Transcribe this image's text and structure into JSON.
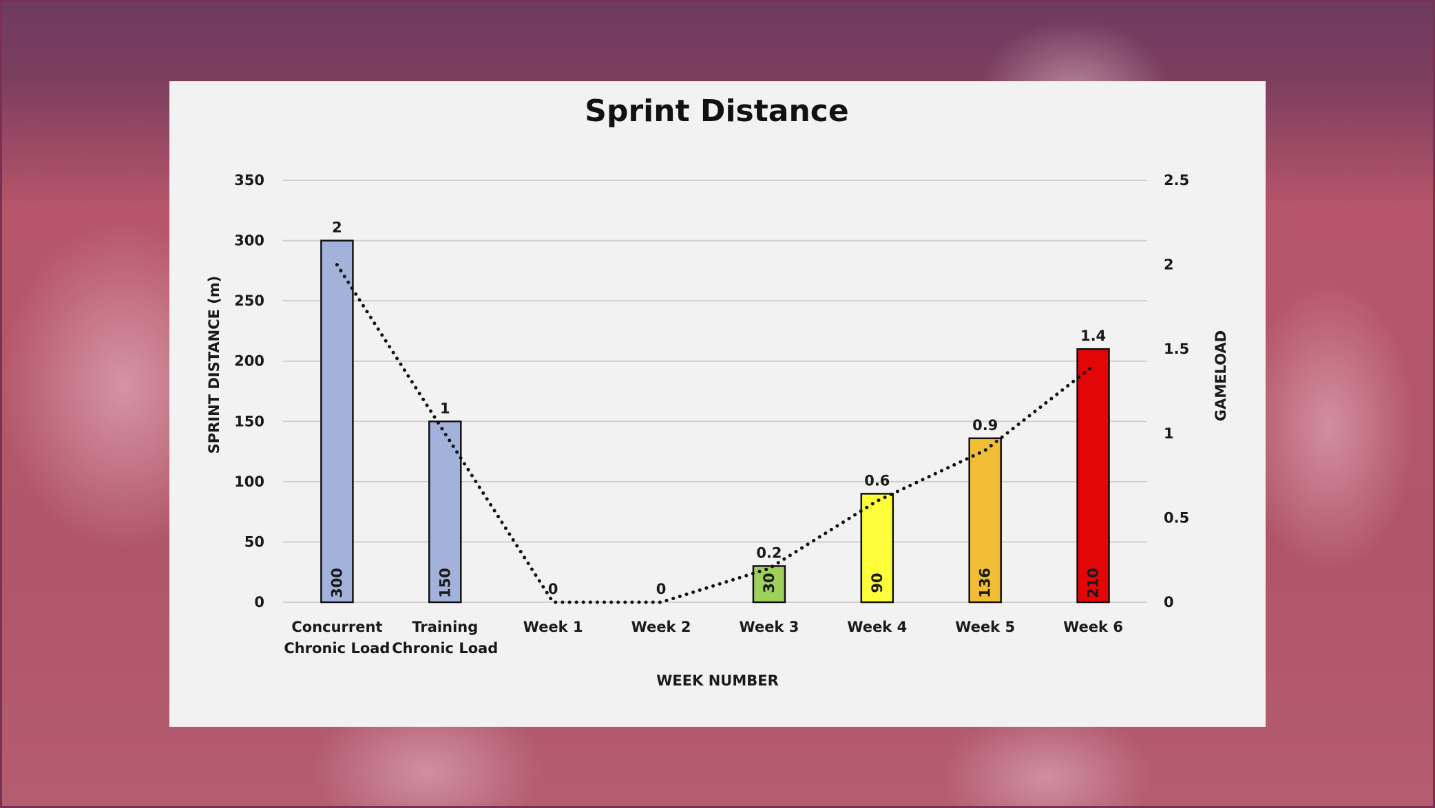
{
  "chart_data": {
    "type": "bar",
    "title": "Sprint Distance",
    "xlabel": "WEEK NUMBER",
    "ylabel": "SPRINT DISTANCE  (m)",
    "y2label": "GAMELOAD",
    "ylim": [
      0,
      350
    ],
    "y2lim": [
      0,
      2.5
    ],
    "yticks": [
      "0",
      "50",
      "100",
      "150",
      "200",
      "250",
      "300",
      "350"
    ],
    "y2ticks": [
      "0",
      "0.5",
      "1",
      "1.5",
      "2",
      "2.5"
    ],
    "grid": true,
    "categories": [
      [
        "Concurrent",
        "Chronic Load"
      ],
      [
        "Training",
        "Chronic Load"
      ],
      [
        "Week 1"
      ],
      [
        "Week 2"
      ],
      [
        "Week 3"
      ],
      [
        "Week 4"
      ],
      [
        "Week 5"
      ],
      [
        "Week 6"
      ]
    ],
    "series": [
      {
        "type": "bar",
        "values": [
          300,
          150,
          0,
          0,
          30,
          90,
          136,
          210
        ],
        "labels": [
          "300",
          "150",
          "",
          "",
          "30",
          "90",
          "136",
          "210"
        ],
        "colors": [
          "#a2b2db",
          "#a2b2db",
          "#a2b2db",
          "#a2b2db",
          "#9ed05c",
          "#fefe3a",
          "#f0bd35",
          "#e20606"
        ]
      },
      {
        "type": "line",
        "style": "dotted",
        "axis": "secondary",
        "values": [
          2,
          1,
          0,
          0,
          0.2,
          0.6,
          0.9,
          1.4
        ],
        "labels": [
          "2",
          "1",
          "0",
          "0",
          "0.2",
          "0.6",
          "0.9",
          "1.4"
        ]
      }
    ]
  }
}
